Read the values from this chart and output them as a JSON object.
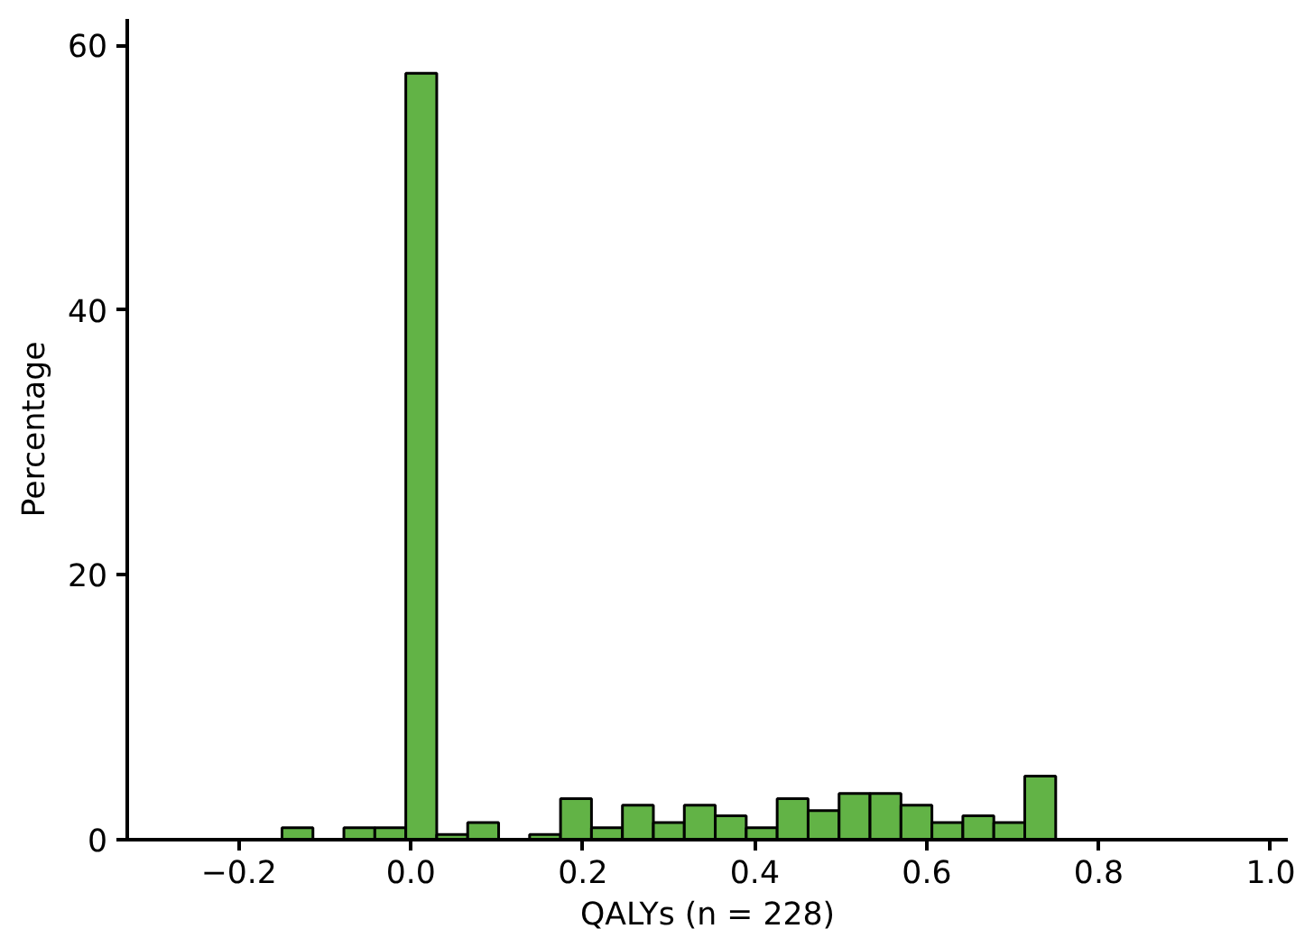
{
  "chart_data": {
    "type": "histogram",
    "xlabel": "QALYs (n = 228)",
    "ylabel": "Percentage",
    "color": "#62b346",
    "bins": [
      -0.15,
      -0.114,
      -0.078,
      -0.042,
      -0.006,
      0.03,
      0.066,
      0.102,
      0.138,
      0.174,
      0.21,
      0.246,
      0.282,
      0.318,
      0.354,
      0.39,
      0.426,
      0.462,
      0.498,
      0.534,
      0.57,
      0.606,
      0.642,
      0.678,
      0.714,
      0.75
    ],
    "values": [
      0.9,
      0,
      0.9,
      0.9,
      57.9,
      0.4,
      1.3,
      0,
      0.4,
      3.1,
      0.9,
      2.6,
      1.3,
      2.6,
      1.8,
      0.9,
      3.1,
      2.2,
      3.5,
      3.5,
      2.6,
      1.3,
      1.8,
      1.3,
      4.8
    ],
    "xlim": [
      -0.33,
      1.02
    ],
    "ylim": [
      0,
      62
    ],
    "xticks": [
      {
        "value": -0.2,
        "label": "−0.2"
      },
      {
        "value": 0.0,
        "label": "0.0"
      },
      {
        "value": 0.2,
        "label": "0.2"
      },
      {
        "value": 0.4,
        "label": "0.4"
      },
      {
        "value": 0.6,
        "label": "0.6"
      },
      {
        "value": 0.8,
        "label": "0.8"
      },
      {
        "value": 1.0,
        "label": "1.0"
      }
    ],
    "yticks": [
      0,
      20,
      40,
      60
    ],
    "grid": false
  }
}
